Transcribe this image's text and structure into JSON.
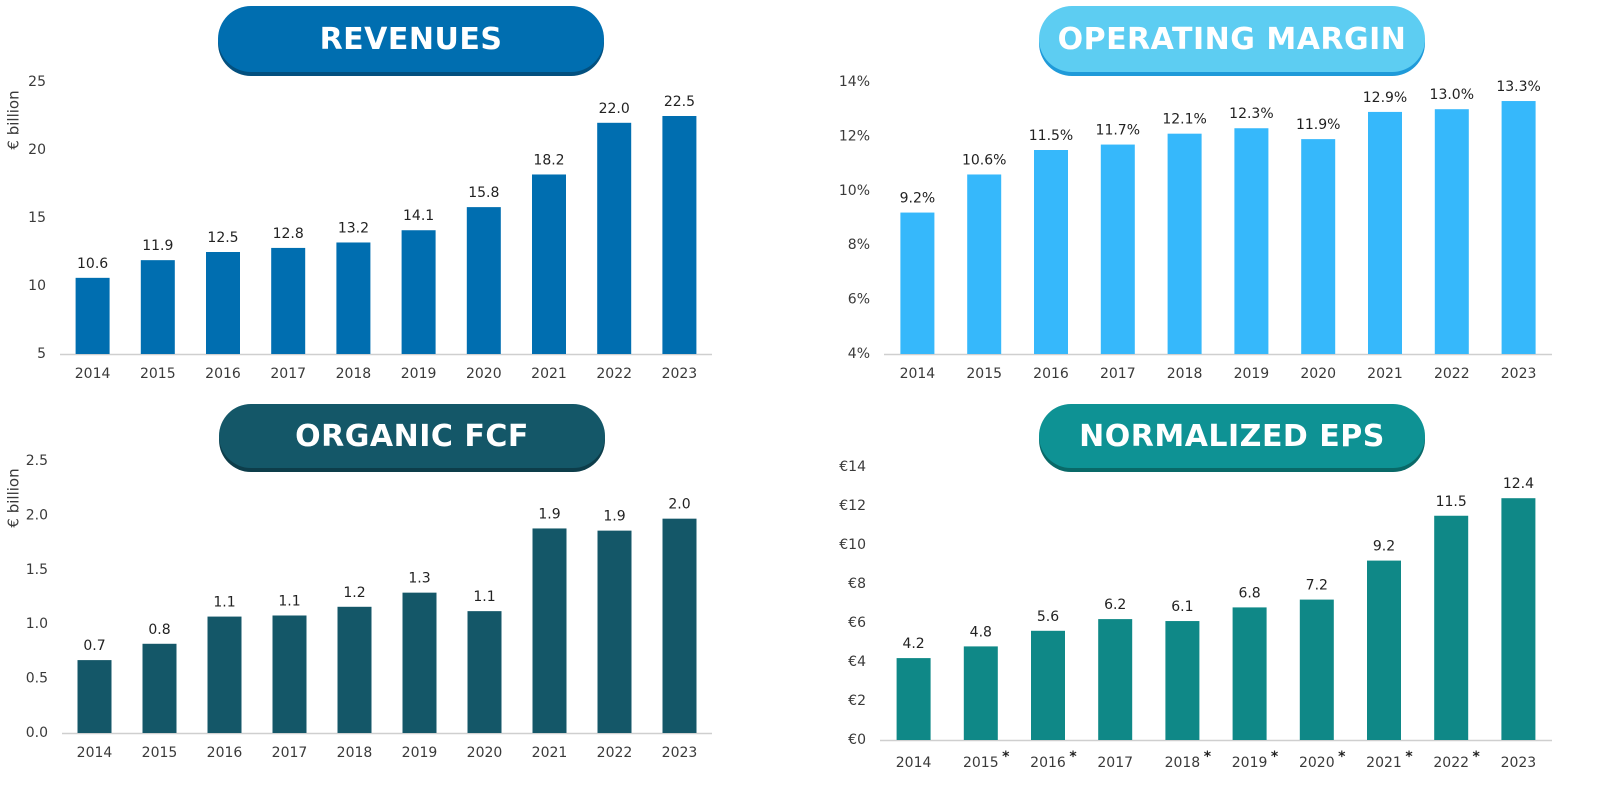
{
  "colors": {
    "revenues": "#006eb0",
    "revenues_shadow": "#03507f",
    "operating_margin": "#36b8fb",
    "operating_margin_title": "#5dcdf2",
    "operating_margin_shadow": "#1f9ad9",
    "organic_fcf": "#145768",
    "organic_fcf_shadow": "#0d3d4a",
    "normalized_eps": "#0f8887",
    "normalized_eps_title": "#0e9294",
    "normalized_eps_shadow": "#096968",
    "axis": "#cfcfcf"
  },
  "chart_data": [
    {
      "id": "revenues",
      "type": "bar",
      "title": "REVENUES",
      "ylabel": "€ billion",
      "categories": [
        "2014",
        "2015",
        "2016",
        "2017",
        "2018",
        "2019",
        "2020",
        "2021",
        "2022",
        "2023"
      ],
      "values": [
        10.6,
        11.9,
        12.5,
        12.8,
        13.2,
        14.1,
        15.8,
        18.2,
        22.0,
        22.5
      ],
      "value_labels": [
        "10.6",
        "11.9",
        "12.5",
        "12.8",
        "13.2",
        "14.1",
        "15.8",
        "18.2",
        "22.0",
        "22.5"
      ],
      "ylim": [
        5,
        25
      ],
      "y_ticks": [
        5,
        10,
        15,
        20,
        25
      ],
      "y_tick_labels": [
        "5",
        "10",
        "15",
        "20",
        "25"
      ],
      "asterisks": [
        false,
        false,
        false,
        false,
        false,
        false,
        false,
        false,
        false,
        false
      ],
      "grid": false
    },
    {
      "id": "operating_margin",
      "type": "bar",
      "title": "OPERATING MARGIN",
      "ylabel": "",
      "categories": [
        "2014",
        "2015",
        "2016",
        "2017",
        "2018",
        "2019",
        "2020",
        "2021",
        "2022",
        "2023"
      ],
      "values": [
        9.2,
        10.6,
        11.5,
        11.7,
        12.1,
        12.3,
        11.9,
        12.9,
        13.0,
        13.3
      ],
      "value_labels": [
        "9.2%",
        "10.6%",
        "11.5%",
        "11.7%",
        "12.1%",
        "12.3%",
        "11.9%",
        "12.9%",
        "13.0%",
        "13.3%"
      ],
      "ylim": [
        4,
        14
      ],
      "y_ticks": [
        4,
        6,
        8,
        10,
        12,
        14
      ],
      "y_tick_labels": [
        "4%",
        "6%",
        "8%",
        "10%",
        "12%",
        "14%"
      ],
      "asterisks": [
        false,
        false,
        false,
        false,
        false,
        false,
        false,
        false,
        false,
        false
      ],
      "grid": false
    },
    {
      "id": "organic_fcf",
      "type": "bar",
      "title": "ORGANIC FCF",
      "ylabel": "€ billion",
      "categories": [
        "2014",
        "2015",
        "2016",
        "2017",
        "2018",
        "2019",
        "2020",
        "2021",
        "2022",
        "2023"
      ],
      "values": [
        0.67,
        0.82,
        1.07,
        1.08,
        1.16,
        1.29,
        1.12,
        1.88,
        1.86,
        1.97
      ],
      "value_labels": [
        "0.7",
        "0.8",
        "1.1",
        "1.1",
        "1.2",
        "1.3",
        "1.1",
        "1.9",
        "1.9",
        "2.0"
      ],
      "ylim": [
        0,
        2.5
      ],
      "y_ticks": [
        0,
        0.5,
        1.0,
        1.5,
        2.0,
        2.5
      ],
      "y_tick_labels": [
        "0.0",
        "0.5",
        "1.0",
        "1.5",
        "2.0",
        "2.5"
      ],
      "asterisks": [
        false,
        false,
        false,
        false,
        false,
        false,
        false,
        false,
        false,
        false
      ],
      "grid": false
    },
    {
      "id": "normalized_eps",
      "type": "bar",
      "title": "NORMALIZED EPS",
      "ylabel": "",
      "categories": [
        "2014",
        "2015",
        "2016",
        "2017",
        "2018",
        "2019",
        "2020",
        "2021",
        "2022",
        "2023"
      ],
      "values": [
        4.2,
        4.8,
        5.6,
        6.2,
        6.1,
        6.8,
        7.2,
        9.2,
        11.5,
        12.4
      ],
      "value_labels": [
        "4.2",
        "4.8",
        "5.6",
        "6.2",
        "6.1",
        "6.8",
        "7.2",
        "9.2",
        "11.5",
        "12.4"
      ],
      "ylim": [
        0,
        14
      ],
      "y_ticks": [
        0,
        2,
        4,
        6,
        8,
        10,
        12,
        14
      ],
      "y_tick_labels": [
        "€0",
        "€2",
        "€4",
        "€6",
        "€8",
        "€10",
        "€12",
        "€14"
      ],
      "asterisks": [
        false,
        true,
        true,
        false,
        true,
        true,
        true,
        true,
        true,
        false
      ],
      "asterisk_symbol": "*",
      "grid": false
    }
  ]
}
